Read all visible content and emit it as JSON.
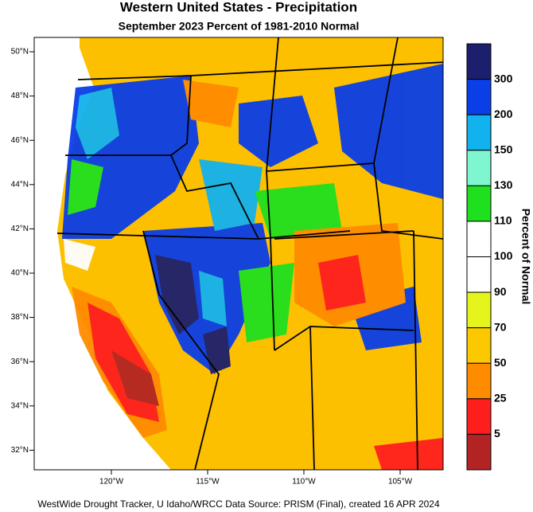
{
  "header": {
    "title": "Western United States - Precipitation",
    "subtitle": "September 2023  Percent of 1981-2010 Normal"
  },
  "map": {
    "lat_labels": [
      "50°N",
      "48°N",
      "46°N",
      "44°N",
      "42°N",
      "40°N",
      "38°N",
      "36°N",
      "34°N",
      "32°N"
    ],
    "lon_labels": [
      "120°W",
      "115°W",
      "110°W",
      "105°W"
    ]
  },
  "legend": {
    "title": "Percent of Normal",
    "labels": [
      300,
      200,
      150,
      130,
      110,
      100,
      90,
      70,
      50,
      25,
      5
    ],
    "colors": [
      "#1c1f6e",
      "#0a3ee6",
      "#12b2ee",
      "#7ff5d0",
      "#1fe01f",
      "#ffffff",
      "#ffffff",
      "#e4f41c",
      "#fcc800",
      "#ff8c00",
      "#ff1e1e",
      "#b22424"
    ]
  },
  "footer": "WestWide Drought Tracker, U Idaho/WRCC Data Source: PRISM (Final), created 16 APR 2024"
}
